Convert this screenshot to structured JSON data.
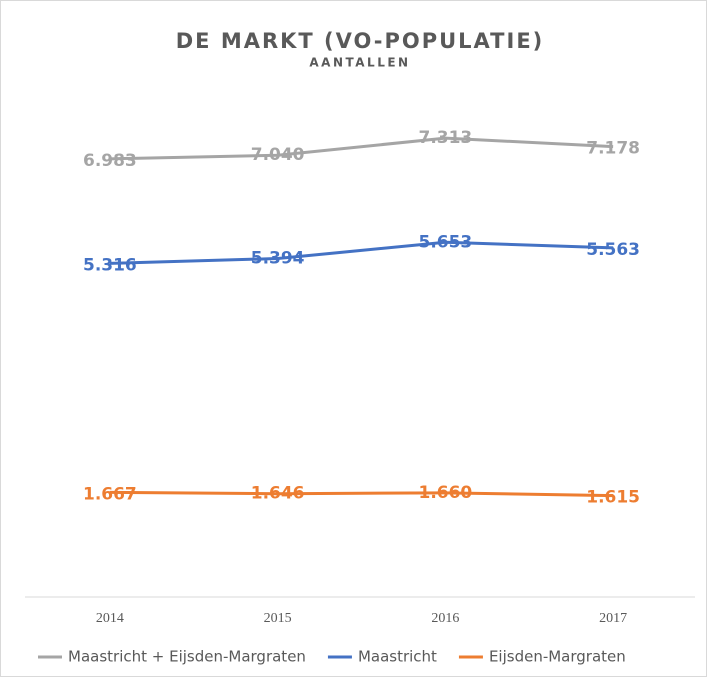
{
  "chart_data": {
    "type": "line",
    "title": "DE MARKT (VO-POPULATIE)",
    "subtitle": "AANTALLEN",
    "categories": [
      "2014",
      "2015",
      "2016",
      "2017"
    ],
    "ylim": [
      0,
      8000
    ],
    "series": [
      {
        "name": "Maastricht + Eijsden-Margraten",
        "color": "#a5a5a5",
        "values": [
          6983,
          7040,
          7313,
          7178
        ],
        "value_labels": [
          "6.983",
          "7.040",
          "7.313",
          "7.178"
        ]
      },
      {
        "name": "Maastricht",
        "color": "#4472c4",
        "values": [
          5316,
          5394,
          5653,
          5563
        ],
        "value_labels": [
          "5.316",
          "5.394",
          "5.653",
          "5.563"
        ]
      },
      {
        "name": "Eijsden-Margraten",
        "color": "#ed7d31",
        "values": [
          1667,
          1646,
          1660,
          1615
        ],
        "value_labels": [
          "1.667",
          "1.646",
          "1.660",
          "1.615"
        ]
      }
    ],
    "legend": "bottom"
  }
}
